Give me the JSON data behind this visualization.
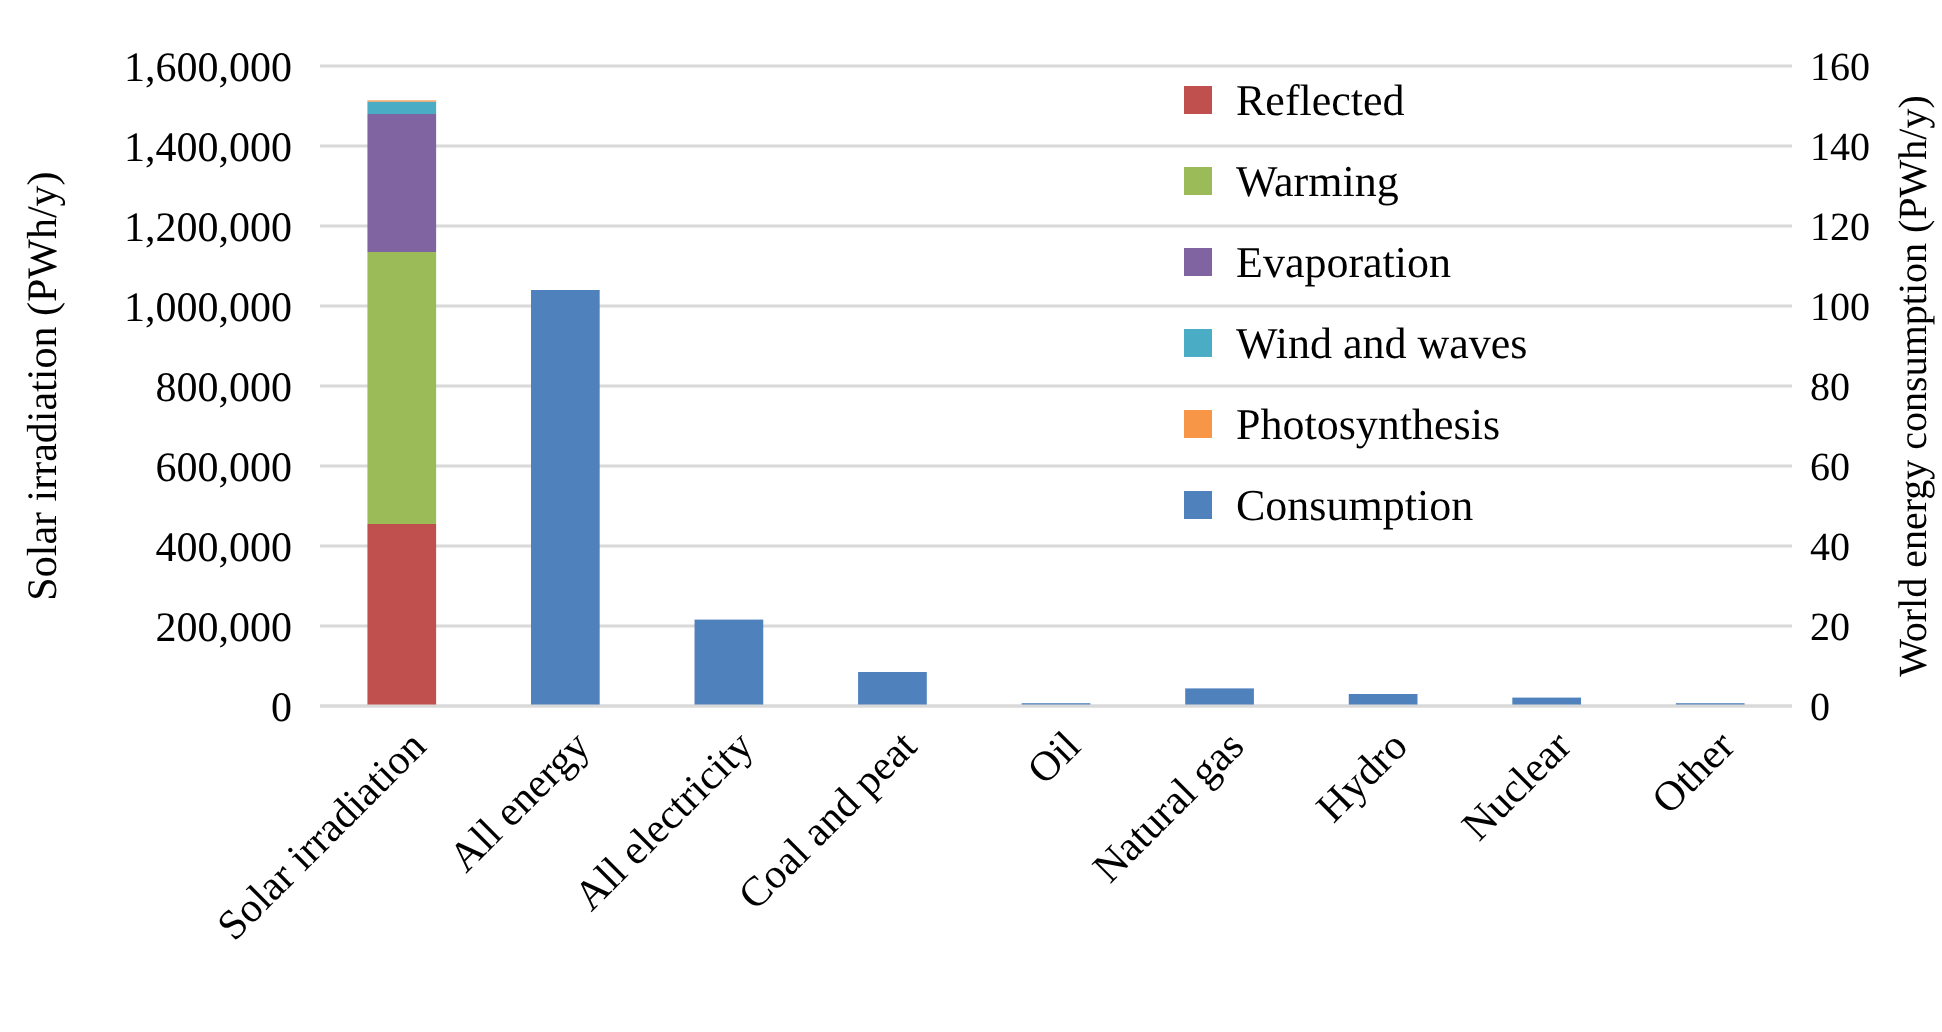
{
  "chart_data": {
    "type": "bar",
    "stacked": true,
    "ylabel": "Solar irradiation (PWh/y)",
    "y2label": "World energy consumption (PWh/y)",
    "categories": [
      "Solar irradiation",
      "All energy",
      "All electricity",
      "Coal and peat",
      "Oil",
      "Natural gas",
      "Hydro",
      "Nuclear",
      "Other"
    ],
    "series": [
      {
        "name": "Reflected",
        "color": "#c0504d",
        "values": [
          455000,
          null,
          null,
          null,
          null,
          null,
          null,
          null,
          null
        ]
      },
      {
        "name": "Warming",
        "color": "#9bbb59",
        "values": [
          680000,
          null,
          null,
          null,
          null,
          null,
          null,
          null,
          null
        ]
      },
      {
        "name": "Evaporation",
        "color": "#8064a2",
        "values": [
          345000,
          null,
          null,
          null,
          null,
          null,
          null,
          null,
          null
        ]
      },
      {
        "name": "Wind and waves",
        "color": "#4bacc6",
        "values": [
          31000,
          null,
          null,
          null,
          null,
          null,
          null,
          null,
          null
        ]
      },
      {
        "name": "Photosynthesis",
        "color": "#f79646",
        "values": [
          3000,
          null,
          null,
          null,
          null,
          null,
          null,
          null,
          null
        ]
      },
      {
        "name": "Consumption",
        "color": "#4f81bd",
        "axis": "y2",
        "values": [
          null,
          104,
          21.6,
          8.5,
          0.7,
          4.4,
          3,
          2.1,
          0.7
        ]
      }
    ],
    "ylim": [
      0,
      1600000
    ],
    "yticks": [
      {
        "value": 0,
        "label": "0"
      },
      {
        "value": 200000,
        "label": "200,000"
      },
      {
        "value": 400000,
        "label": "400,000"
      },
      {
        "value": 600000,
        "label": "600,000"
      },
      {
        "value": 800000,
        "label": "800,000"
      },
      {
        "value": 1000000,
        "label": "1,000,000"
      },
      {
        "value": 1200000,
        "label": "1,200,000"
      },
      {
        "value": 1400000,
        "label": "1,400,000"
      },
      {
        "value": 1600000,
        "label": "1,600,000"
      }
    ],
    "y2lim": [
      0,
      160
    ],
    "y2ticks": [
      0,
      20,
      40,
      60,
      80,
      100,
      120,
      140,
      160
    ],
    "grid": "y",
    "legend": "top right"
  }
}
